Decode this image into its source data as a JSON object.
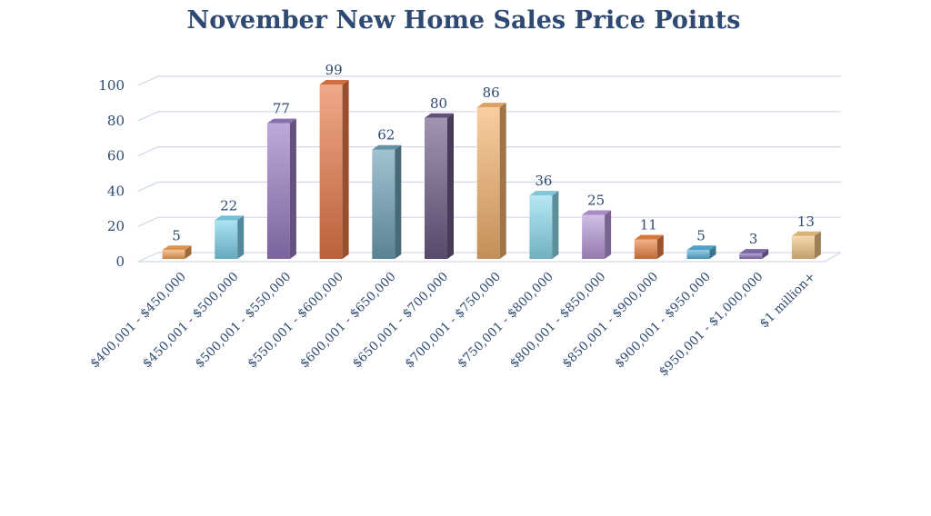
{
  "chart_data": {
    "type": "bar",
    "title": "November New Home Sales Price Points",
    "xlabel": "",
    "ylabel": "",
    "ylim": [
      0,
      100
    ],
    "yticks": [
      0,
      20,
      40,
      60,
      80,
      100
    ],
    "grid": true,
    "legend": "none",
    "categories": [
      "$400,001 - $450,000",
      "$450,001 - $500,000",
      "$500,001 - $550,000",
      "$550,001 - $600,000",
      "$600,001 - $650,000",
      "$650,001 - $700,000",
      "$700,001 - $750,000",
      "$750,001 - $800,000",
      "$800,001 - $850,000",
      "$850,001 - $900,000",
      "$900,001 - $950,000",
      "$950,001 - $1,000,000",
      "$1 million+"
    ],
    "values": [
      5,
      22,
      77,
      99,
      62,
      80,
      86,
      36,
      25,
      11,
      5,
      3,
      13
    ],
    "colors": [
      "#f4a55a",
      "#7fd3ee",
      "#9a7cc4",
      "#e8794a",
      "#6fa3b8",
      "#6e5a86",
      "#f4b36e",
      "#8fdcef",
      "#b89ada",
      "#ec8545",
      "#5ab3dc",
      "#8a73b8",
      "#f2c483"
    ]
  }
}
